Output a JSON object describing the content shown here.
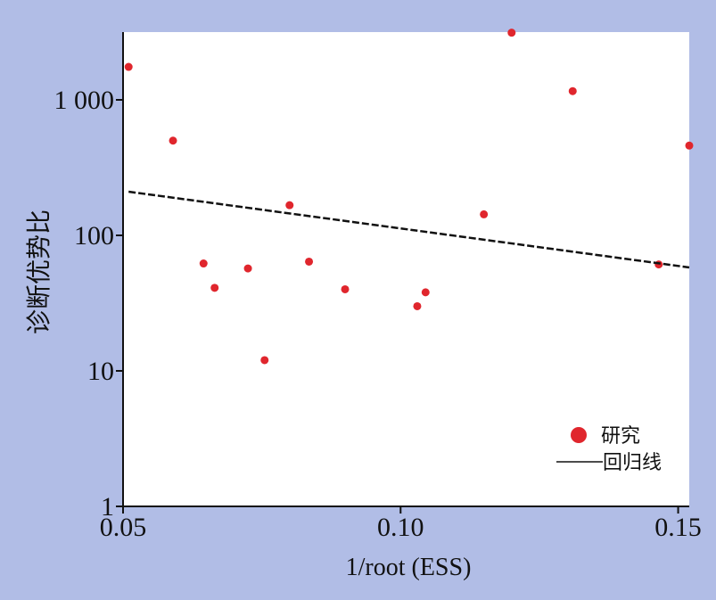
{
  "colors": {
    "background": "#b1bde6",
    "plot_area": "#ffffff",
    "point": "#e0262d",
    "regression_line": "#111111",
    "axis": "#111111"
  },
  "chart_data": {
    "type": "scatter",
    "xlabel": "1/root (ESS)",
    "ylabel": "诊断优势比",
    "x_scale": "linear",
    "y_scale": "log",
    "xlim": [
      0.05,
      0.152
    ],
    "ylim": [
      1,
      3162
    ],
    "x_ticks": [
      {
        "value": 0.05,
        "label": "0.05"
      },
      {
        "value": 0.1,
        "label": "0.10"
      },
      {
        "value": 0.15,
        "label": "0.15"
      }
    ],
    "y_ticks": [
      {
        "value": 1,
        "label": "1"
      },
      {
        "value": 10,
        "label": "10"
      },
      {
        "value": 100,
        "label": "100"
      },
      {
        "value": 1000,
        "label": "1 000"
      }
    ],
    "grid": false,
    "legend_position": "bottom-right",
    "series": [
      {
        "name": "研究",
        "marker": "circle",
        "points": [
          {
            "x": 0.051,
            "y": 1750
          },
          {
            "x": 0.059,
            "y": 500
          },
          {
            "x": 0.0645,
            "y": 62
          },
          {
            "x": 0.0665,
            "y": 41
          },
          {
            "x": 0.0725,
            "y": 57
          },
          {
            "x": 0.0755,
            "y": 12
          },
          {
            "x": 0.08,
            "y": 167
          },
          {
            "x": 0.0835,
            "y": 64
          },
          {
            "x": 0.09,
            "y": 40
          },
          {
            "x": 0.103,
            "y": 30
          },
          {
            "x": 0.1045,
            "y": 38
          },
          {
            "x": 0.115,
            "y": 143
          },
          {
            "x": 0.12,
            "y": 3130
          },
          {
            "x": 0.131,
            "y": 1160
          },
          {
            "x": 0.1465,
            "y": 61
          },
          {
            "x": 0.152,
            "y": 460
          }
        ]
      },
      {
        "name": "回归线",
        "type": "line",
        "style": "dashed",
        "points": [
          {
            "x": 0.051,
            "y": 210
          },
          {
            "x": 0.152,
            "y": 58
          }
        ]
      }
    ]
  }
}
